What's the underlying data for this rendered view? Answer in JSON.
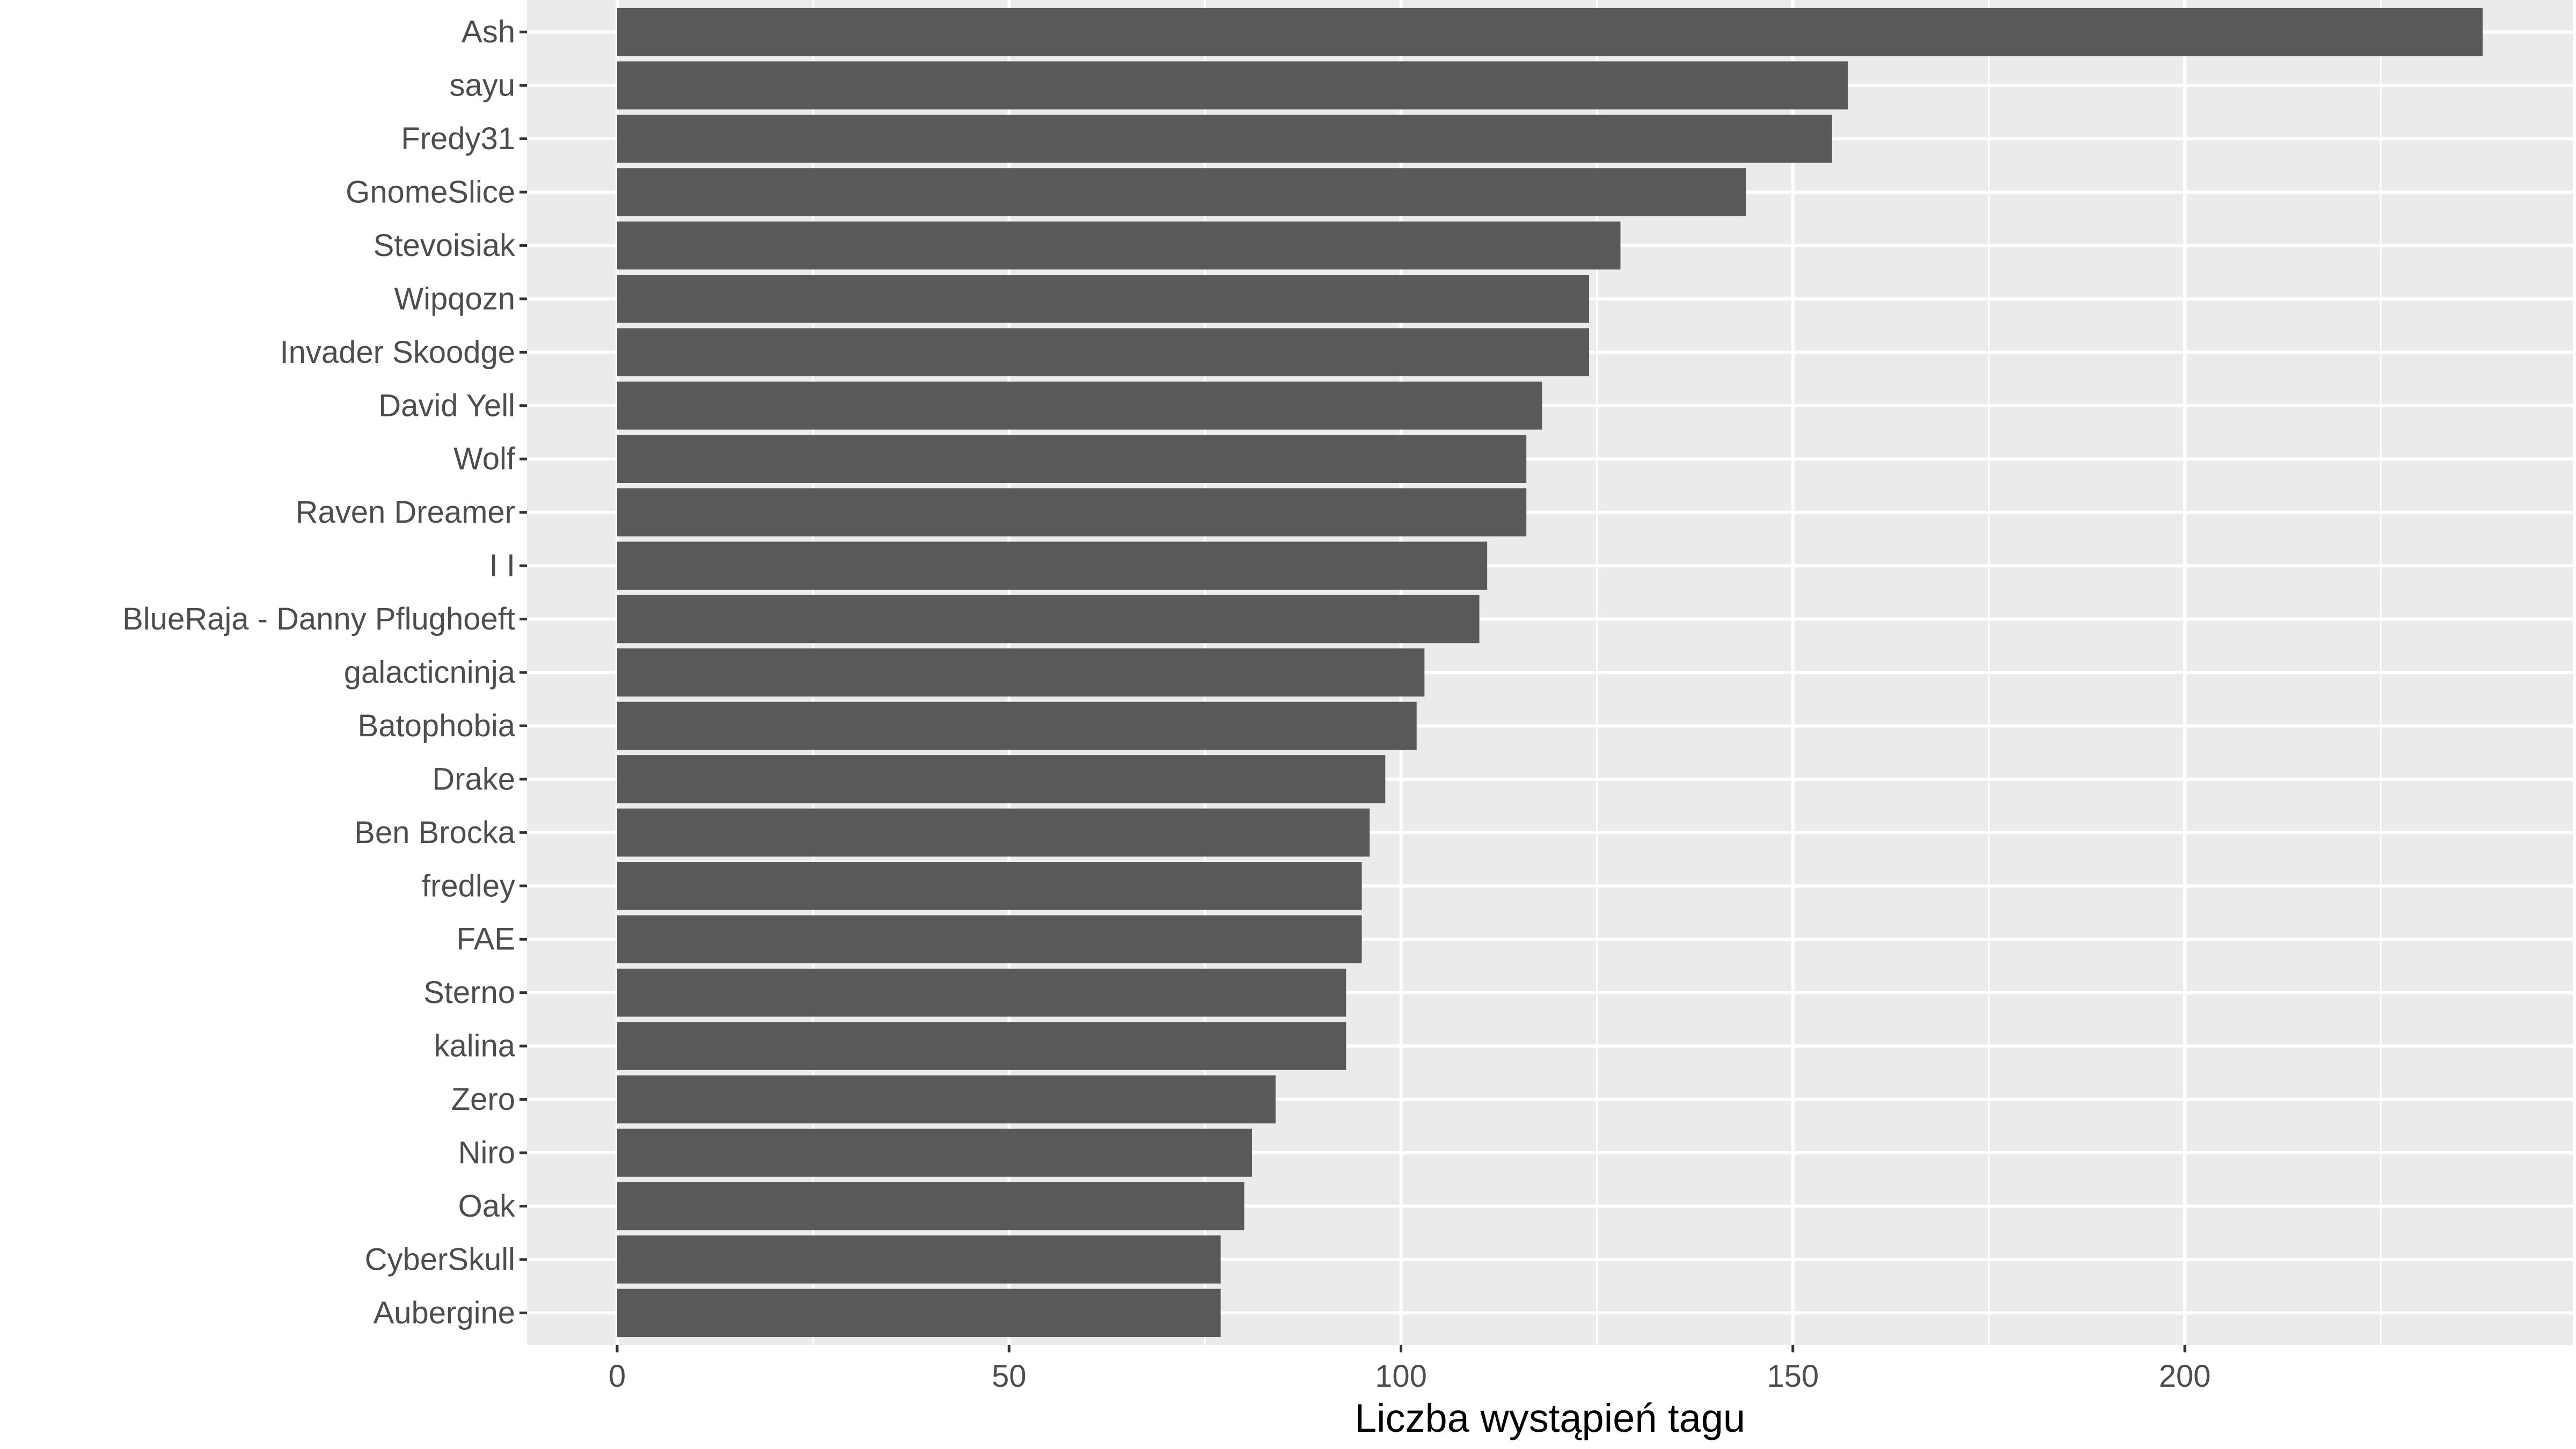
{
  "chart_data": {
    "type": "bar",
    "orientation": "horizontal",
    "title": "",
    "xlabel": "Liczba wystąpień tagu",
    "ylabel": "",
    "xlim": [
      -11.5,
      249.5
    ],
    "xticks": [
      0,
      50,
      100,
      150,
      200
    ],
    "xticks_minor": [
      25,
      75,
      125,
      175,
      225
    ],
    "grid": true,
    "legend": "none",
    "categories": [
      "Ash",
      "sayu",
      "Fredy31",
      "GnomeSlice",
      "Stevoisiak",
      "Wipqozn",
      "Invader Skoodge",
      "David Yell",
      "Wolf",
      "Raven Dreamer",
      "I I",
      "BlueRaja - Danny Pflughoeft",
      "galacticninja",
      "Batophobia",
      "Drake",
      "Ben Brocka",
      "fredley",
      "FAE",
      "Sterno",
      "kalina",
      "Zero",
      "Niro",
      "Oak",
      "CyberSkull",
      "Aubergine"
    ],
    "values": [
      238,
      157,
      155,
      144,
      128,
      124,
      124,
      118,
      116,
      116,
      111,
      110,
      103,
      102,
      98,
      96,
      95,
      95,
      93,
      93,
      84,
      81,
      80,
      77,
      77
    ],
    "colors": {
      "bar": "#595959",
      "panel": "#ebebeb",
      "grid": "#ffffff",
      "tick_text": "#4d4d4d",
      "axis_title": "#000000"
    }
  }
}
